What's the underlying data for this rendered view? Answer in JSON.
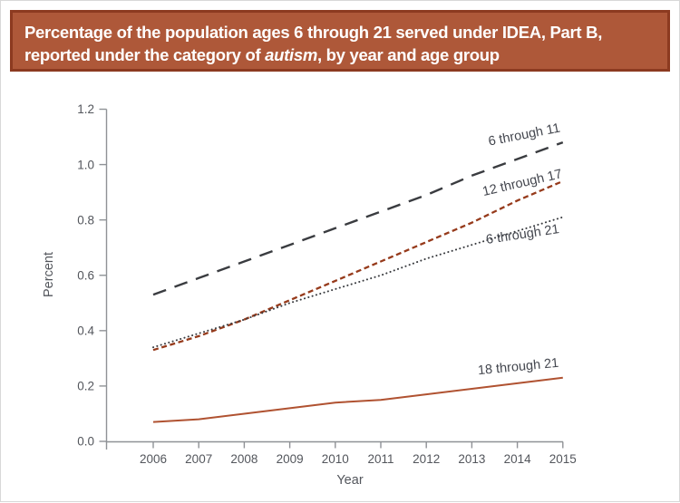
{
  "page": {
    "banner": {
      "title_line1": "Percentage of the population ages 6 through 21 served under IDEA, Part B,",
      "title_line2_prefix": "reported under the category of ",
      "title_line2_italic": "autism",
      "title_line2_suffix": ", by year and age group",
      "background_color": "#ae5839",
      "border_color": "#8c3a20",
      "text_color": "#ffffff"
    }
  },
  "chart_data": {
    "type": "line",
    "title": "Percentage of the population ages 6 through 21 served under IDEA, Part B, reported under the category of autism, by year and age group",
    "xlabel": "Year",
    "ylabel": "Percent",
    "x": [
      2006,
      2007,
      2008,
      2009,
      2010,
      2011,
      2012,
      2013,
      2014,
      2015
    ],
    "ylim": [
      0.0,
      1.2
    ],
    "y_ticks": [
      0.0,
      0.2,
      0.4,
      0.6,
      0.8,
      1.0,
      1.2
    ],
    "grid": false,
    "legend_position": "inline-labels-on-lines",
    "axis_color": "#8f9296",
    "tick_label_color": "#53565c",
    "annotation_color": "#43464e",
    "series": [
      {
        "name": "6 through 11",
        "values": [
          0.53,
          0.59,
          0.65,
          0.71,
          0.77,
          0.83,
          0.89,
          0.96,
          1.02,
          1.08
        ],
        "color": "#3a3c40",
        "line_style": "long-dash"
      },
      {
        "name": "12 through 17",
        "values": [
          0.33,
          0.38,
          0.44,
          0.51,
          0.58,
          0.65,
          0.72,
          0.79,
          0.87,
          0.94
        ],
        "color": "#963a1b",
        "line_style": "short-dash"
      },
      {
        "name": "6 through 21",
        "values": [
          0.34,
          0.39,
          0.44,
          0.5,
          0.55,
          0.6,
          0.66,
          0.71,
          0.76,
          0.81
        ],
        "color": "#3a3c40",
        "line_style": "dotted"
      },
      {
        "name": "18 through 21",
        "values": [
          0.07,
          0.08,
          0.1,
          0.12,
          0.14,
          0.15,
          0.17,
          0.19,
          0.21,
          0.23
        ],
        "color": "#b05231",
        "line_style": "solid"
      }
    ]
  }
}
